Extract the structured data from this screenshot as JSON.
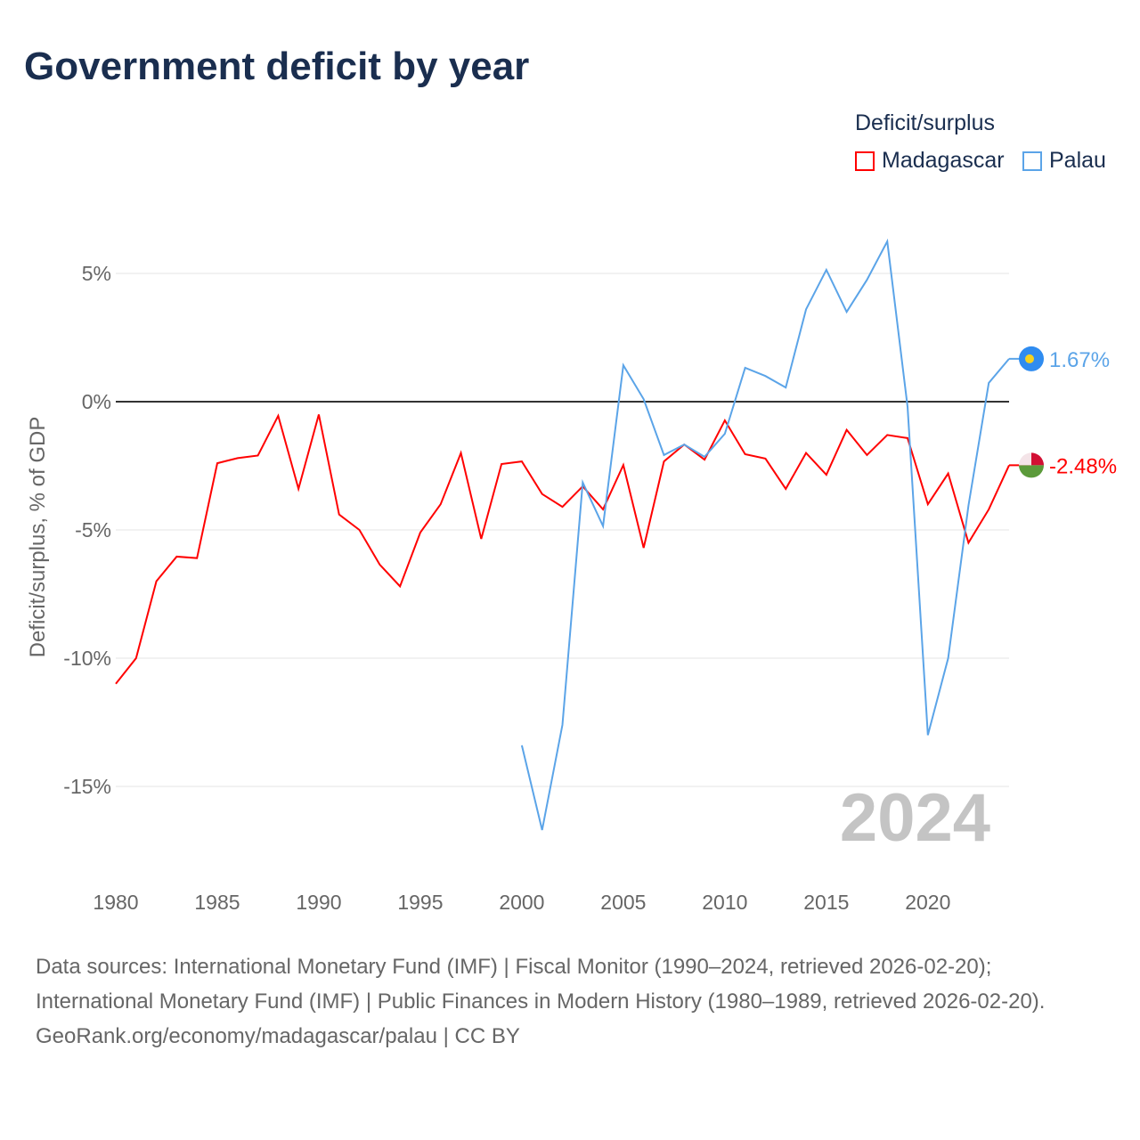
{
  "title": "Government deficit by year",
  "legend": {
    "title": "Deficit/surplus",
    "items": [
      {
        "label": "Madagascar",
        "color": "#ff0000"
      },
      {
        "label": "Palau",
        "color": "#5ba4e8"
      }
    ]
  },
  "year_watermark": "2024",
  "sources": {
    "line1": "Data sources: International Monetary Fund (IMF) | Fiscal Monitor (1990–2024, retrieved 2026-02-20); International Monetary Fund (IMF) | Public Finances in Modern History (1980–1989, retrieved 2026-02-20).",
    "line2": "GeoRank.org/economy/madagascar/palau | CC BY"
  },
  "chart_data": {
    "type": "line",
    "title": "Government deficit by year",
    "xlabel": "",
    "ylabel": "Deficit/surplus, % of GDP",
    "xlim": [
      1980,
      2024
    ],
    "ylim": [
      -17.5,
      7.5
    ],
    "xticks": [
      1980,
      1985,
      1990,
      1995,
      2000,
      2005,
      2010,
      2015,
      2020
    ],
    "yticks": [
      5,
      0,
      -5,
      -10,
      -15
    ],
    "ytick_labels": [
      "5%",
      "0%",
      "-5%",
      "-10%",
      "-15%"
    ],
    "grid": true,
    "legend_position": "top-right",
    "series": [
      {
        "name": "Madagascar",
        "color": "#ff0000",
        "end_label": "-2.48%",
        "x": [
          1980,
          1981,
          1982,
          1983,
          1984,
          1985,
          1986,
          1987,
          1988,
          1989,
          1990,
          1991,
          1992,
          1993,
          1994,
          1995,
          1996,
          1997,
          1998,
          1999,
          2000,
          2001,
          2002,
          2003,
          2004,
          2005,
          2006,
          2007,
          2008,
          2009,
          2010,
          2011,
          2012,
          2013,
          2014,
          2015,
          2016,
          2017,
          2018,
          2019,
          2020,
          2021,
          2022,
          2023,
          2024
        ],
        "values": [
          -11.0,
          -10.0,
          -7.0,
          -6.04,
          -6.1,
          -2.4,
          -2.2,
          -2.1,
          -0.55,
          -3.4,
          -0.5,
          -4.4,
          -5.0,
          -6.35,
          -7.2,
          -5.1,
          -4.0,
          -2.0,
          -5.35,
          -2.43,
          -2.33,
          -3.6,
          -4.1,
          -3.3,
          -4.2,
          -2.47,
          -5.7,
          -2.33,
          -1.67,
          -2.26,
          -0.73,
          -2.05,
          -2.22,
          -3.4,
          -2.0,
          -2.85,
          -1.1,
          -2.08,
          -1.3,
          -1.42,
          -4.0,
          -2.8,
          -5.5,
          -4.2,
          -2.48
        ]
      },
      {
        "name": "Palau",
        "color": "#5ba4e8",
        "end_label": "1.67%",
        "x": [
          2000,
          2001,
          2002,
          2003,
          2004,
          2005,
          2006,
          2007,
          2008,
          2009,
          2010,
          2011,
          2012,
          2013,
          2014,
          2015,
          2016,
          2017,
          2018,
          2019,
          2020,
          2021,
          2022,
          2023,
          2024
        ],
        "values": [
          -13.4,
          -16.7,
          -12.6,
          -3.15,
          -4.85,
          1.42,
          0.1,
          -2.08,
          -1.67,
          -2.15,
          -1.25,
          1.32,
          1.0,
          0.55,
          3.6,
          5.14,
          3.5,
          4.75,
          6.25,
          -0.2,
          -13.0,
          -10.0,
          -4.05,
          0.73,
          1.67
        ]
      }
    ]
  }
}
